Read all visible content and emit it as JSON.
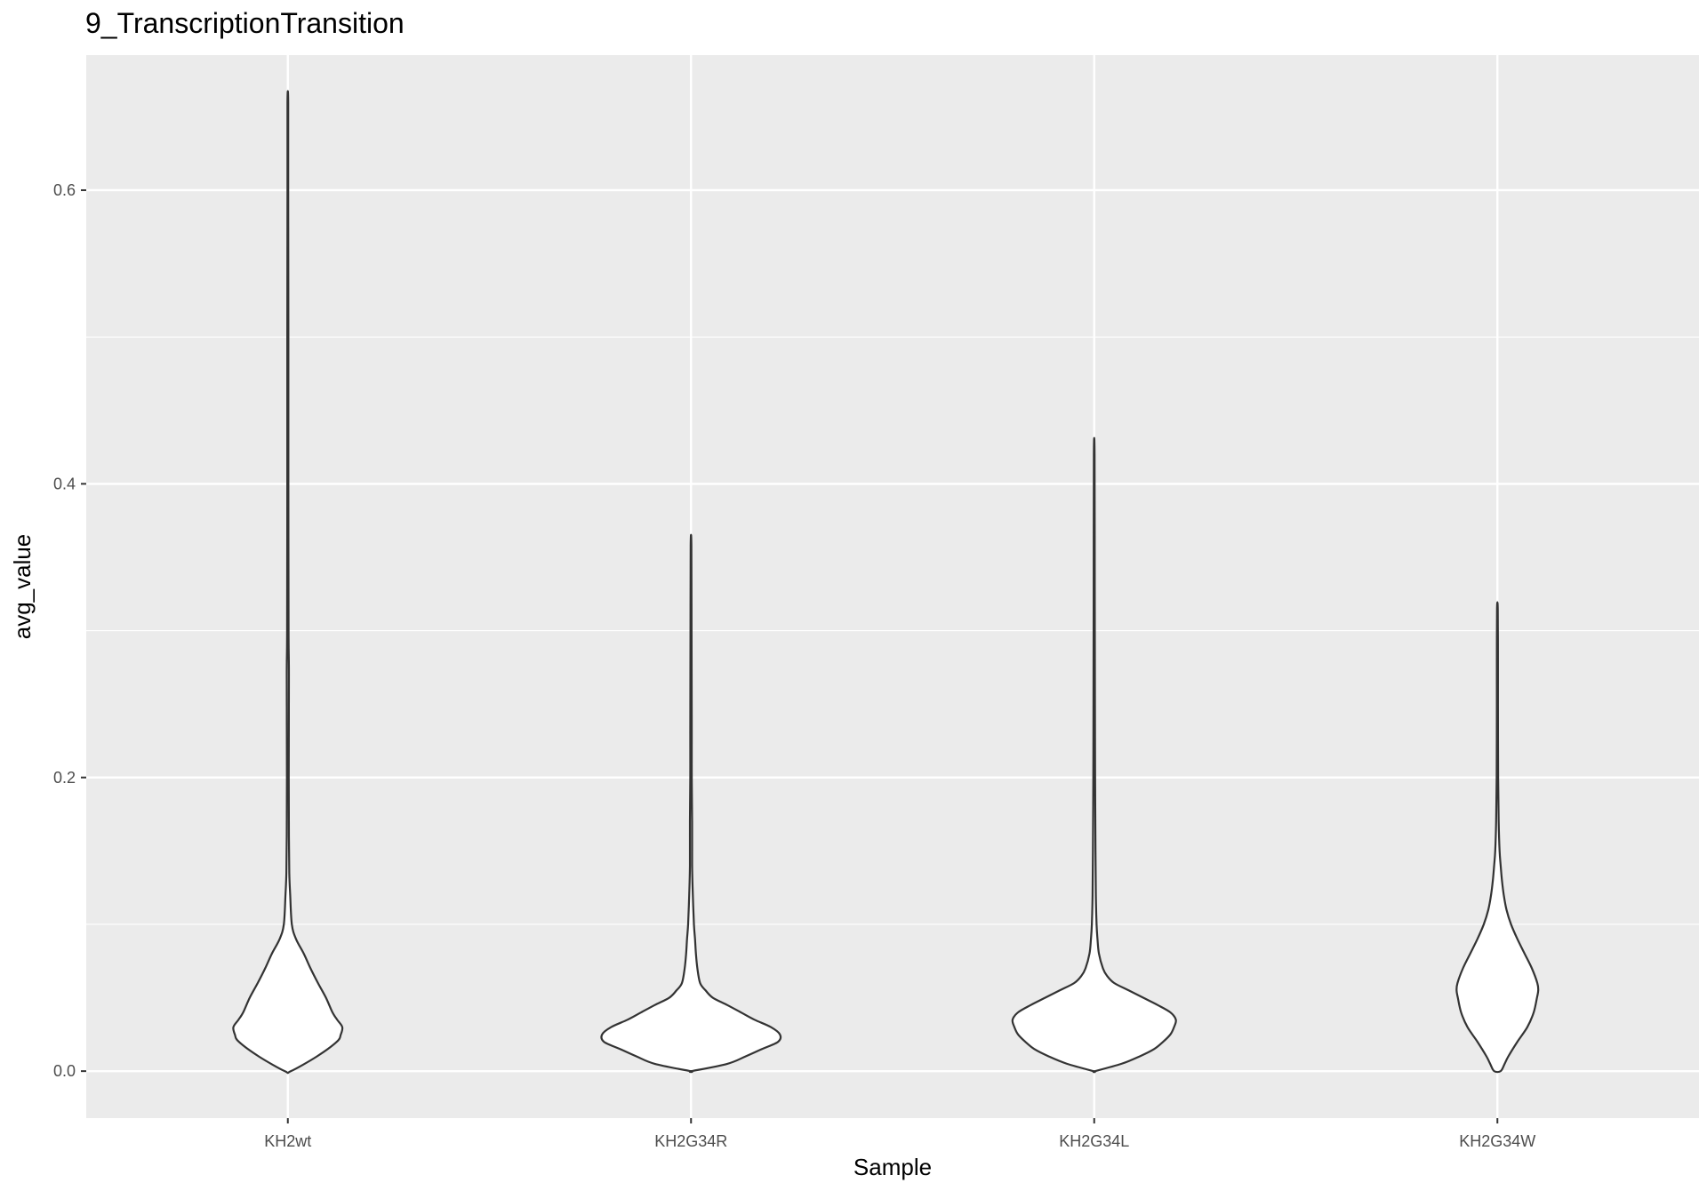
{
  "chart_data": {
    "type": "violin",
    "title": "9_TranscriptionTransition",
    "xlabel": "Sample",
    "ylabel": "avg_value",
    "ylim": [
      -0.032,
      0.692
    ],
    "yticks": [
      0.0,
      0.2,
      0.4,
      0.6
    ],
    "ytick_labels": [
      "0.0",
      "0.2",
      "0.4",
      "0.6"
    ],
    "grid": true,
    "legend": "none",
    "categories": [
      "KH2wt",
      "KH2G34R",
      "KH2G34L",
      "KH2G34W"
    ],
    "series": [
      {
        "category": "KH2wt",
        "min": 0.0,
        "max": 0.66,
        "profile": [
          [
            0.0,
            0.017
          ],
          [
            0.01,
            0.16
          ],
          [
            0.02,
            0.27
          ],
          [
            0.025,
            0.292
          ],
          [
            0.03,
            0.3
          ],
          [
            0.035,
            0.272
          ],
          [
            0.04,
            0.246
          ],
          [
            0.05,
            0.21
          ],
          [
            0.06,
            0.166
          ],
          [
            0.07,
            0.125
          ],
          [
            0.08,
            0.088
          ],
          [
            0.09,
            0.045
          ],
          [
            0.1,
            0.022
          ],
          [
            0.12,
            0.013
          ],
          [
            0.135,
            0.008
          ],
          [
            0.16,
            0.006
          ],
          [
            0.2,
            0.005
          ],
          [
            0.27,
            0.006
          ],
          [
            0.3,
            0.004
          ],
          [
            0.4,
            0.003
          ],
          [
            0.5,
            0.003
          ],
          [
            0.6,
            0.002
          ],
          [
            0.66,
            0.002
          ]
        ]
      },
      {
        "category": "KH2G34R",
        "min": 0.0,
        "max": 0.358,
        "profile": [
          [
            0.0,
            0.004
          ],
          [
            0.005,
            0.2
          ],
          [
            0.01,
            0.3
          ],
          [
            0.015,
            0.39
          ],
          [
            0.02,
            0.48
          ],
          [
            0.025,
            0.49
          ],
          [
            0.03,
            0.44
          ],
          [
            0.035,
            0.35
          ],
          [
            0.04,
            0.275
          ],
          [
            0.045,
            0.2
          ],
          [
            0.05,
            0.12
          ],
          [
            0.055,
            0.08
          ],
          [
            0.06,
            0.05
          ],
          [
            0.07,
            0.035
          ],
          [
            0.08,
            0.027
          ],
          [
            0.09,
            0.022
          ],
          [
            0.1,
            0.016
          ],
          [
            0.12,
            0.01
          ],
          [
            0.14,
            0.006
          ],
          [
            0.17,
            0.006
          ],
          [
            0.2,
            0.004
          ],
          [
            0.23,
            0.004
          ],
          [
            0.3,
            0.003
          ],
          [
            0.358,
            0.002
          ]
        ]
      },
      {
        "category": "KH2G34L",
        "min": 0.0,
        "max": 0.42,
        "profile": [
          [
            0.0,
            0.004
          ],
          [
            0.005,
            0.15
          ],
          [
            0.01,
            0.25
          ],
          [
            0.015,
            0.33
          ],
          [
            0.02,
            0.38
          ],
          [
            0.025,
            0.42
          ],
          [
            0.03,
            0.44
          ],
          [
            0.035,
            0.45
          ],
          [
            0.04,
            0.42
          ],
          [
            0.045,
            0.35
          ],
          [
            0.05,
            0.27
          ],
          [
            0.055,
            0.19
          ],
          [
            0.06,
            0.11
          ],
          [
            0.065,
            0.07
          ],
          [
            0.07,
            0.048
          ],
          [
            0.08,
            0.026
          ],
          [
            0.09,
            0.018
          ],
          [
            0.1,
            0.013
          ],
          [
            0.12,
            0.009
          ],
          [
            0.15,
            0.007
          ],
          [
            0.2,
            0.005
          ],
          [
            0.25,
            0.004
          ],
          [
            0.33,
            0.003
          ],
          [
            0.42,
            0.002
          ]
        ]
      },
      {
        "category": "KH2G34W",
        "min": 0.0,
        "max": 0.315,
        "profile": [
          [
            0.0,
            0.018
          ],
          [
            0.005,
            0.04
          ],
          [
            0.01,
            0.06
          ],
          [
            0.02,
            0.11
          ],
          [
            0.03,
            0.165
          ],
          [
            0.04,
            0.2
          ],
          [
            0.05,
            0.218
          ],
          [
            0.055,
            0.225
          ],
          [
            0.06,
            0.22
          ],
          [
            0.07,
            0.19
          ],
          [
            0.08,
            0.15
          ],
          [
            0.09,
            0.11
          ],
          [
            0.1,
            0.075
          ],
          [
            0.11,
            0.05
          ],
          [
            0.12,
            0.035
          ],
          [
            0.13,
            0.025
          ],
          [
            0.14,
            0.018
          ],
          [
            0.15,
            0.012
          ],
          [
            0.17,
            0.007
          ],
          [
            0.2,
            0.004
          ],
          [
            0.25,
            0.003
          ],
          [
            0.28,
            0.003
          ],
          [
            0.315,
            0.002
          ]
        ]
      }
    ]
  }
}
